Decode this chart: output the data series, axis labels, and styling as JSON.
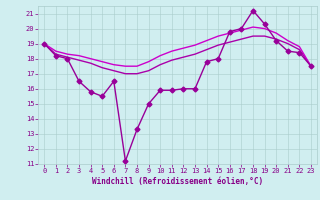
{
  "xlabel": "Windchill (Refroidissement éolien,°C)",
  "line1": {
    "x": [
      0,
      1,
      2,
      3,
      4,
      5,
      6,
      7,
      8,
      9,
      10,
      11,
      12,
      13,
      14,
      15,
      16,
      17,
      18,
      19,
      20,
      21,
      22,
      23
    ],
    "y": [
      19.0,
      18.2,
      18.0,
      16.5,
      15.8,
      15.5,
      16.5,
      11.2,
      13.3,
      15.0,
      15.9,
      15.9,
      16.0,
      16.0,
      17.8,
      18.0,
      19.8,
      20.0,
      21.2,
      20.3,
      19.2,
      18.5,
      18.4,
      17.5
    ],
    "color": "#990099",
    "marker": "D",
    "markersize": 2.5,
    "linewidth": 1.0
  },
  "line2": {
    "x": [
      0,
      1,
      2,
      3,
      4,
      5,
      6,
      7,
      8,
      9,
      10,
      11,
      12,
      13,
      14,
      15,
      16,
      17,
      18,
      19,
      20,
      21,
      22,
      23
    ],
    "y": [
      19.0,
      18.5,
      18.3,
      18.2,
      18.0,
      17.8,
      17.6,
      17.5,
      17.5,
      17.8,
      18.2,
      18.5,
      18.7,
      18.9,
      19.2,
      19.5,
      19.7,
      19.9,
      20.1,
      20.0,
      19.7,
      19.2,
      18.8,
      17.5
    ],
    "color": "#cc00cc",
    "linewidth": 1.0
  },
  "line3": {
    "x": [
      0,
      1,
      2,
      3,
      4,
      5,
      6,
      7,
      8,
      9,
      10,
      11,
      12,
      13,
      14,
      15,
      16,
      17,
      18,
      19,
      20,
      21,
      22,
      23
    ],
    "y": [
      19.0,
      18.3,
      18.1,
      17.9,
      17.7,
      17.4,
      17.2,
      17.0,
      17.0,
      17.2,
      17.6,
      17.9,
      18.1,
      18.3,
      18.6,
      18.9,
      19.1,
      19.3,
      19.5,
      19.5,
      19.3,
      19.0,
      18.6,
      17.5
    ],
    "color": "#aa00aa",
    "linewidth": 1.0
  },
  "ylim": [
    11,
    21.5
  ],
  "xlim": [
    -0.5,
    23.5
  ],
  "yticks": [
    11,
    12,
    13,
    14,
    15,
    16,
    17,
    18,
    19,
    20,
    21
  ],
  "xticks": [
    0,
    1,
    2,
    3,
    4,
    5,
    6,
    7,
    8,
    9,
    10,
    11,
    12,
    13,
    14,
    15,
    16,
    17,
    18,
    19,
    20,
    21,
    22,
    23
  ],
  "bg_color": "#d0eef0",
  "grid_color": "#aacccc",
  "text_color": "#880088",
  "xlabel_fontsize": 5.5,
  "tick_fontsize": 5.0
}
